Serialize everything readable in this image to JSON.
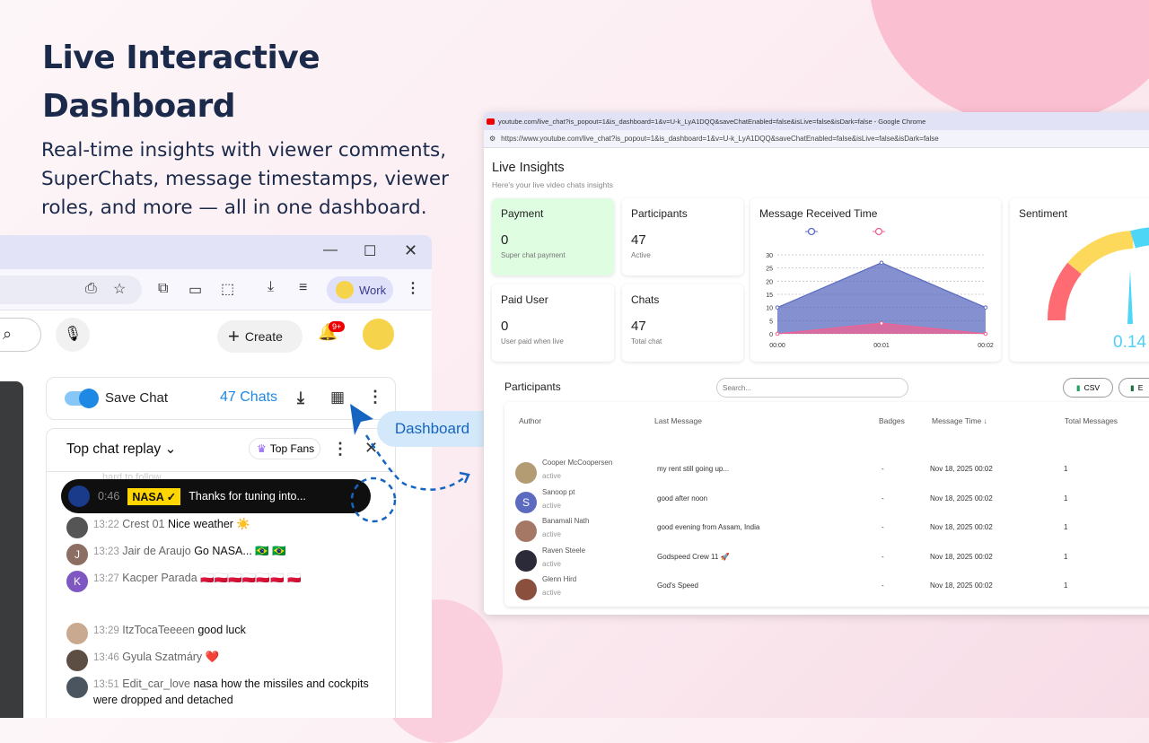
{
  "hero": {
    "title_line1": "Live Interactive",
    "title_line2": "Dashboard",
    "subtitle": "Real-time insights with viewer comments, SuperChats, message timestamps, viewer roles, and more — all in one dashboard."
  },
  "left_window": {
    "profile_label": "Work",
    "create_label": "Create",
    "notif_badge": "9+",
    "save_chat_label": "Save Chat",
    "save_chat_on": true,
    "chat_count": "47 Chats",
    "chat_mode": "Top chat replay",
    "top_fans_label": "Top Fans",
    "faded_text": "hard to follow",
    "pinned": {
      "time": "0:46",
      "author": "NASA",
      "text": "Thanks for tuning into..."
    },
    "messages": [
      {
        "time": "13:22",
        "author": "Crest 01",
        "text": "Nice weather ☀️",
        "initial": "",
        "color": "#555"
      },
      {
        "time": "13:23",
        "author": "Jair de Araujo",
        "text": "Go NASA... 🇧🇷 🇧🇷",
        "initial": "J",
        "color": "#8d6e63"
      },
      {
        "time": "13:27",
        "author": "Kacper Parada",
        "text": "🇵🇱🇵🇱🇵🇱🇵🇱🇵🇱🇵🇱 🇵🇱",
        "initial": "K",
        "color": "#7e57c2"
      },
      {
        "time": "13:29",
        "author": "ItzTocaTeeeen",
        "text": "good luck",
        "initial": "",
        "color": "#c9a98f"
      },
      {
        "time": "13:46",
        "author": "Gyula Szatmáry",
        "text": "❤️",
        "initial": "",
        "color": "#5d4e44"
      },
      {
        "time": "13:51",
        "author": "Edit_car_love",
        "text": "nasa how the missiles and cockpits were dropped and detached",
        "initial": "",
        "color": "#4a5560"
      }
    ],
    "dashboard_tag": "Dashboard"
  },
  "right_window": {
    "window_title": "youtube.com/live_chat?is_popout=1&is_dashboard=1&v=U-k_LyA1DQQ&saveChatEnabled=false&isLive=false&isDark=false - Google Chrome",
    "url": "https://www.youtube.com/live_chat?is_popout=1&is_dashboard=1&v=U-k_LyA1DQQ&saveChatEnabled=false&isLive=false&isDark=false",
    "title": "Live Insights",
    "subtitle": "Here's your live video chats insights",
    "cards": [
      {
        "title": "Payment",
        "value": "0",
        "sub": "Super chat payment"
      },
      {
        "title": "Participants",
        "value": "47",
        "sub": "Active"
      },
      {
        "title": "Paid User",
        "value": "0",
        "sub": "User paid when live"
      },
      {
        "title": "Chats",
        "value": "47",
        "sub": "Total chat"
      }
    ],
    "sentiment": {
      "title": "Sentiment",
      "value": "0.14"
    },
    "participants": {
      "title": "Participants",
      "search_placeholder": "Search...",
      "csv_label": "CSV",
      "excel_label": "E",
      "columns": [
        "Author",
        "Last Message",
        "Badges",
        "Message Time ↓",
        "Total Messages"
      ],
      "rows": [
        {
          "author": "Cooper McCoopersen",
          "status": "active",
          "message": "my rent still going up...",
          "badges": "-",
          "time": "Nov 18, 2025 00:02",
          "total": "1",
          "color": "#b39b74"
        },
        {
          "author": "Sanoop pt",
          "status": "active",
          "message": "good after noon",
          "badges": "-",
          "time": "Nov 18, 2025 00:02",
          "total": "1",
          "color": "#5c6bc0",
          "initial": "S"
        },
        {
          "author": "Banamali Nath",
          "status": "active",
          "message": "good evening from Assam, India",
          "badges": "-",
          "time": "Nov 18, 2025 00:02",
          "total": "1",
          "color": "#a57865"
        },
        {
          "author": "Raven Steele",
          "status": "active",
          "message": "Godspeed Crew 11 🚀",
          "badges": "-",
          "time": "Nov 18, 2025 00:02",
          "total": "1",
          "color": "#2a2a38"
        },
        {
          "author": "Glenn Hird",
          "status": "active",
          "message": "God's Speed",
          "badges": "-",
          "time": "Nov 18, 2025 00:02",
          "total": "1",
          "color": "#8a4f3d"
        }
      ]
    }
  },
  "chart_data": {
    "type": "area",
    "title": "Message Received Time",
    "categories": [
      "00:00",
      "00:01",
      "00:02"
    ],
    "ylim": [
      0,
      30
    ],
    "yticks": [
      "0",
      "5",
      "10",
      "15",
      "20",
      "25",
      "30"
    ],
    "grid": true,
    "legend": "top",
    "series": [
      {
        "values": [
          10,
          27,
          10
        ],
        "color": "#5c6bc0"
      },
      {
        "values": [
          0,
          4,
          0
        ],
        "color": "#f06292"
      }
    ]
  }
}
